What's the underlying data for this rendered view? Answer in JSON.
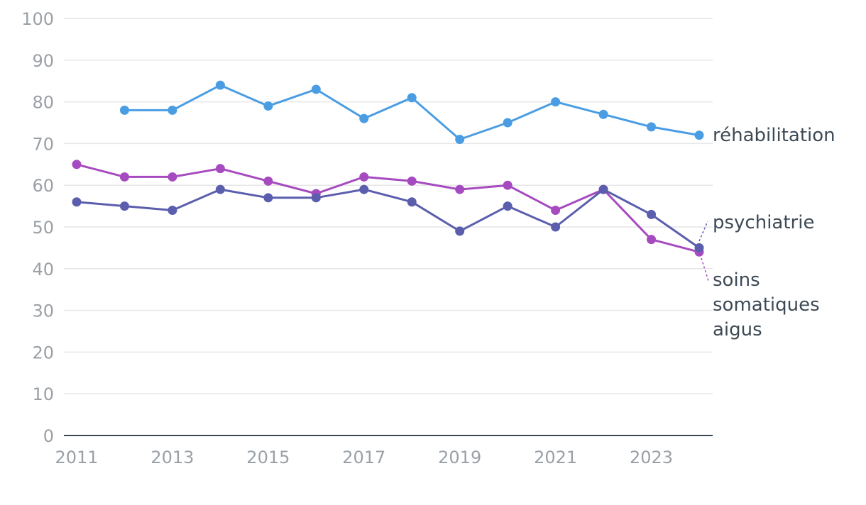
{
  "chart_data": {
    "type": "line",
    "title": "",
    "xlabel": "",
    "ylabel": "",
    "ylim": [
      0,
      100
    ],
    "yticks": [
      0,
      10,
      20,
      30,
      40,
      50,
      60,
      70,
      80,
      90,
      100
    ],
    "xlim": [
      2011,
      2024
    ],
    "xticks": [
      2011,
      2013,
      2015,
      2017,
      2019,
      2021,
      2023
    ],
    "grid": true,
    "series": [
      {
        "name": "réhabilitation",
        "label_lines": [
          "réhabilitation"
        ],
        "color": "#4a9de3",
        "x": [
          2012,
          2013,
          2014,
          2015,
          2016,
          2017,
          2018,
          2019,
          2020,
          2021,
          2022,
          2023,
          2024
        ],
        "values": [
          78,
          78,
          84,
          79,
          83,
          76,
          81,
          71,
          75,
          80,
          77,
          74,
          72
        ]
      },
      {
        "name": "soins somatiques aigus",
        "label_lines": [
          "soins",
          "somatiques",
          "aigus"
        ],
        "color": "#a64bbf",
        "x": [
          2011,
          2012,
          2013,
          2014,
          2015,
          2016,
          2017,
          2018,
          2019,
          2020,
          2021,
          2022,
          2023,
          2024
        ],
        "values": [
          65,
          62,
          62,
          64,
          61,
          58,
          62,
          61,
          59,
          60,
          54,
          59,
          47,
          44
        ]
      },
      {
        "name": "psychiatrie",
        "label_lines": [
          "psychiatrie"
        ],
        "color": "#5b5ead",
        "x": [
          2011,
          2012,
          2013,
          2014,
          2015,
          2016,
          2017,
          2018,
          2019,
          2020,
          2021,
          2022,
          2023,
          2024
        ],
        "values": [
          56,
          55,
          54,
          59,
          57,
          57,
          59,
          56,
          49,
          55,
          50,
          59,
          53,
          45
        ]
      }
    ]
  }
}
